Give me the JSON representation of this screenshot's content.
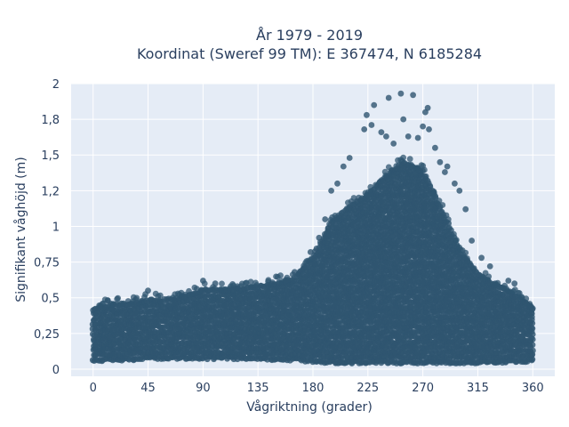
{
  "chart_data": {
    "type": "scatter",
    "title_lines": [
      "År 1979 - 2019",
      "Koordinat (Sweref 99 TM): E 367474, N 6185284"
    ],
    "xlabel": "Vågriktning (grader)",
    "ylabel": "Signifikant våghöjd (m)",
    "xlim": [
      -18,
      378
    ],
    "ylim": [
      -0.05,
      2.0
    ],
    "x_ticks": [
      0,
      45,
      90,
      135,
      180,
      225,
      270,
      315,
      360
    ],
    "x_tick_labels": [
      "0",
      "45",
      "90",
      "135",
      "180",
      "225",
      "270",
      "315",
      "360"
    ],
    "y_ticks": [
      0,
      0.25,
      0.5,
      0.75,
      1,
      1.25,
      1.5,
      1.75,
      2
    ],
    "y_tick_labels": [
      "0",
      "0,25",
      "0,5",
      "0,75",
      "1",
      "1,2",
      "1,5",
      "1,8",
      "2"
    ],
    "grid": true,
    "legend": "none",
    "marker_color": "#2f5570",
    "plot_background": "#e5ecf6",
    "envelope": {
      "direction": [
        0,
        15,
        30,
        45,
        60,
        75,
        90,
        105,
        120,
        135,
        150,
        165,
        180,
        195,
        210,
        225,
        240,
        255,
        270,
        285,
        300,
        315,
        330,
        345,
        360
      ],
      "upper_height": [
        0.42,
        0.45,
        0.45,
        0.48,
        0.48,
        0.5,
        0.55,
        0.55,
        0.56,
        0.57,
        0.6,
        0.63,
        0.78,
        1.02,
        1.13,
        1.22,
        1.35,
        1.45,
        1.38,
        1.12,
        0.82,
        0.66,
        0.58,
        0.52,
        0.42
      ],
      "lower_height": [
        0.06,
        0.07,
        0.07,
        0.08,
        0.08,
        0.08,
        0.08,
        0.08,
        0.08,
        0.08,
        0.07,
        0.07,
        0.06,
        0.05,
        0.05,
        0.05,
        0.05,
        0.05,
        0.05,
        0.05,
        0.05,
        0.05,
        0.05,
        0.06,
        0.06
      ]
    },
    "outliers": [
      {
        "x": 224,
        "y": 1.78
      },
      {
        "x": 222,
        "y": 1.68
      },
      {
        "x": 228,
        "y": 1.71
      },
      {
        "x": 230,
        "y": 1.85
      },
      {
        "x": 236,
        "y": 1.66
      },
      {
        "x": 240,
        "y": 1.63
      },
      {
        "x": 242,
        "y": 1.9
      },
      {
        "x": 246,
        "y": 1.58
      },
      {
        "x": 252,
        "y": 1.93
      },
      {
        "x": 254,
        "y": 1.75
      },
      {
        "x": 258,
        "y": 1.63
      },
      {
        "x": 262,
        "y": 1.92
      },
      {
        "x": 266,
        "y": 1.62
      },
      {
        "x": 270,
        "y": 1.7
      },
      {
        "x": 272,
        "y": 1.8
      },
      {
        "x": 274,
        "y": 1.83
      },
      {
        "x": 275,
        "y": 1.68
      },
      {
        "x": 280,
        "y": 1.55
      },
      {
        "x": 284,
        "y": 1.45
      },
      {
        "x": 288,
        "y": 1.38
      },
      {
        "x": 290,
        "y": 1.42
      },
      {
        "x": 296,
        "y": 1.3
      },
      {
        "x": 300,
        "y": 1.25
      },
      {
        "x": 305,
        "y": 1.12
      },
      {
        "x": 310,
        "y": 0.9
      },
      {
        "x": 318,
        "y": 0.78
      },
      {
        "x": 325,
        "y": 0.72
      },
      {
        "x": 340,
        "y": 0.62
      },
      {
        "x": 345,
        "y": 0.6
      },
      {
        "x": 210,
        "y": 1.48
      },
      {
        "x": 205,
        "y": 1.42
      },
      {
        "x": 200,
        "y": 1.3
      },
      {
        "x": 195,
        "y": 1.25
      },
      {
        "x": 190,
        "y": 1.05
      },
      {
        "x": 185,
        "y": 0.92
      },
      {
        "x": 178,
        "y": 0.82
      },
      {
        "x": 165,
        "y": 0.68
      },
      {
        "x": 158,
        "y": 0.62
      },
      {
        "x": 90,
        "y": 0.62
      },
      {
        "x": 45,
        "y": 0.55
      },
      {
        "x": 12,
        "y": 0.48
      },
      {
        "x": 100,
        "y": 0.6
      }
    ]
  }
}
